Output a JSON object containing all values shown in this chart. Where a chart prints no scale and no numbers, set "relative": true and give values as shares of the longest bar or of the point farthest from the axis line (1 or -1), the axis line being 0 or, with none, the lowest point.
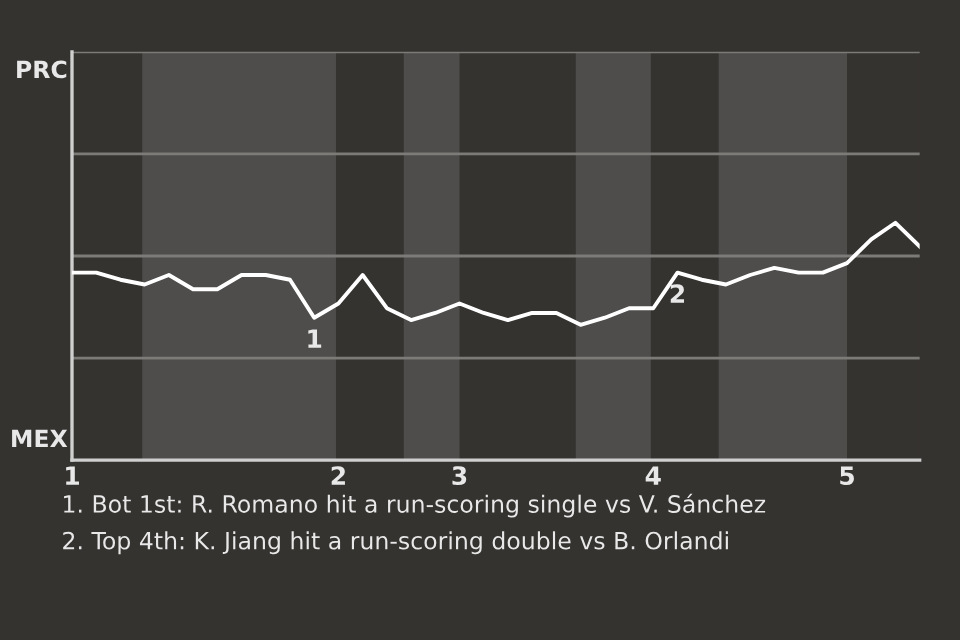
{
  "chart_data": {
    "type": "line",
    "relative": true,
    "categories": [
      "1",
      null,
      null,
      null,
      null,
      null,
      null,
      null,
      null,
      null,
      null,
      "2",
      null,
      null,
      null,
      null,
      "3",
      null,
      null,
      null,
      null,
      null,
      null,
      null,
      "4",
      null,
      null,
      null,
      null,
      null,
      null,
      null,
      "5",
      null,
      null,
      null
    ],
    "series": [
      {
        "color": "#ffffff",
        "values": [
          0.79,
          0.79,
          0.76,
          0.74,
          0.78,
          0.72,
          0.72,
          0.78,
          0.78,
          0.76,
          0.6,
          0.66,
          0.78,
          0.64,
          0.59,
          0.62,
          0.66,
          0.62,
          0.59,
          0.62,
          0.62,
          0.57,
          0.6,
          0.64,
          0.64,
          0.79,
          0.76,
          0.74,
          0.78,
          0.81,
          0.79,
          0.79,
          0.83,
          0.93,
          1,
          0.9
        ]
      }
    ],
    "marker": "none",
    "line_style": "solid",
    "ref_lines": [
      {
        "axis": "y",
        "value": 0.43,
        "color": "#7d7b78"
      },
      {
        "axis": "y",
        "value": 0.86,
        "color": "#7d7b78"
      },
      {
        "axis": "y",
        "value": 1.29,
        "color": "#7d7b78"
      },
      {
        "axis": "y",
        "value": 1.72,
        "color": "#7d7b78"
      }
    ],
    "annotations": [
      {
        "text": "1",
        "y": 0.6
      },
      {
        "text": "2",
        "y": 0.79
      },
      "PRC",
      "MEX",
      "1. Bot 1st: R. Romano hit a run-scoring single vs V. Sánchez",
      "2. Top 4th: K. Jiang hit a run-scoring double vs B. Orlandi"
    ]
  }
}
